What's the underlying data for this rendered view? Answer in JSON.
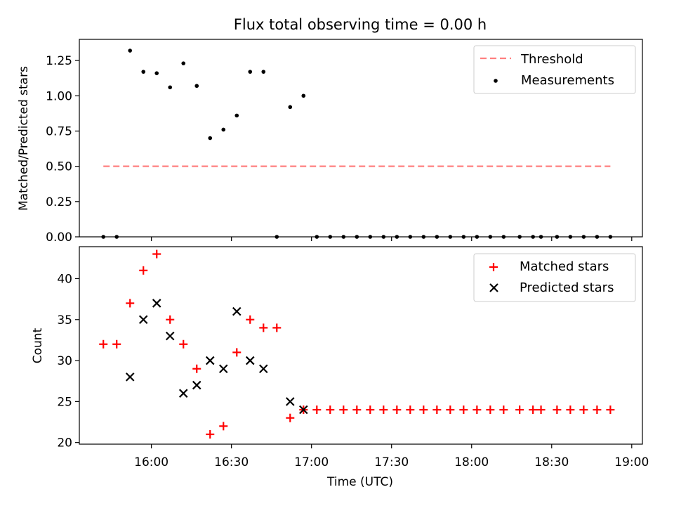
{
  "chart_data": [
    {
      "type": "scatter",
      "title": "Flux total observing time = 0.00 h",
      "ylabel": "Matched/Predicted stars",
      "xlabel": "",
      "ylim": [
        0,
        1.4
      ],
      "yticks": [
        "0.00",
        "0.25",
        "0.50",
        "0.75",
        "1.00",
        "1.25"
      ],
      "legend_position": "upper right",
      "threshold": {
        "name": "Threshold",
        "value": 0.5,
        "x_start": "15:42",
        "x_end": "18:52",
        "color": "#ff8080",
        "style": "dashed"
      },
      "series": [
        {
          "name": "Measurements",
          "color": "#000000",
          "marker": "dot",
          "x": [
            "15:42",
            "15:47",
            "15:52",
            "15:57",
            "16:02",
            "16:07",
            "16:12",
            "16:17",
            "16:22",
            "16:27",
            "16:32",
            "16:37",
            "16:42",
            "16:47",
            "16:52",
            "16:57",
            "17:02",
            "17:07",
            "17:12",
            "17:17",
            "17:22",
            "17:27",
            "17:32",
            "17:37",
            "17:42",
            "17:47",
            "17:52",
            "17:57",
            "18:02",
            "18:07",
            "18:12",
            "18:18",
            "18:23",
            "18:26",
            "18:32",
            "18:37",
            "18:42",
            "18:47",
            "18:52"
          ],
          "y": [
            0,
            0,
            1.32,
            1.17,
            1.16,
            1.06,
            1.23,
            1.07,
            0.7,
            0.76,
            0.86,
            1.17,
            1.17,
            0,
            0.92,
            1.0,
            0,
            0,
            0,
            0,
            0,
            0,
            0,
            0,
            0,
            0,
            0,
            0,
            0,
            0,
            0,
            0,
            0,
            0,
            0,
            0,
            0,
            0,
            0
          ]
        }
      ]
    },
    {
      "type": "scatter",
      "title": "",
      "ylabel": "Count",
      "xlabel": "Time (UTC)",
      "ylim": [
        19.8,
        43.9
      ],
      "yticks": [
        "20",
        "25",
        "30",
        "35",
        "40"
      ],
      "xticks": [
        "16:00",
        "16:30",
        "17:00",
        "17:30",
        "18:00",
        "18:30",
        "19:00"
      ],
      "legend_position": "upper right",
      "series": [
        {
          "name": "Matched stars",
          "color": "#ff0000",
          "marker": "plus",
          "x": [
            "15:42",
            "15:47",
            "15:52",
            "15:57",
            "16:02",
            "16:07",
            "16:12",
            "16:17",
            "16:22",
            "16:27",
            "16:32",
            "16:37",
            "16:42",
            "16:47",
            "16:52",
            "16:57",
            "17:02",
            "17:07",
            "17:12",
            "17:17",
            "17:22",
            "17:27",
            "17:32",
            "17:37",
            "17:42",
            "17:47",
            "17:52",
            "17:57",
            "18:02",
            "18:07",
            "18:12",
            "18:18",
            "18:23",
            "18:26",
            "18:32",
            "18:37",
            "18:42",
            "18:47",
            "18:52"
          ],
          "y": [
            32,
            32,
            37,
            41,
            43,
            35,
            32,
            29,
            21,
            22,
            31,
            35,
            34,
            34,
            23,
            24,
            24,
            24,
            24,
            24,
            24,
            24,
            24,
            24,
            24,
            24,
            24,
            24,
            24,
            24,
            24,
            24,
            24,
            24,
            24,
            24,
            24,
            24,
            24
          ]
        },
        {
          "name": "Predicted stars",
          "color": "#000000",
          "marker": "x",
          "x": [
            "15:52",
            "15:57",
            "16:02",
            "16:07",
            "16:12",
            "16:17",
            "16:22",
            "16:27",
            "16:32",
            "16:37",
            "16:42",
            "16:52",
            "16:57"
          ],
          "y": [
            28,
            35,
            37,
            33,
            26,
            27,
            30,
            29,
            36,
            30,
            29,
            25,
            24
          ]
        }
      ]
    }
  ]
}
